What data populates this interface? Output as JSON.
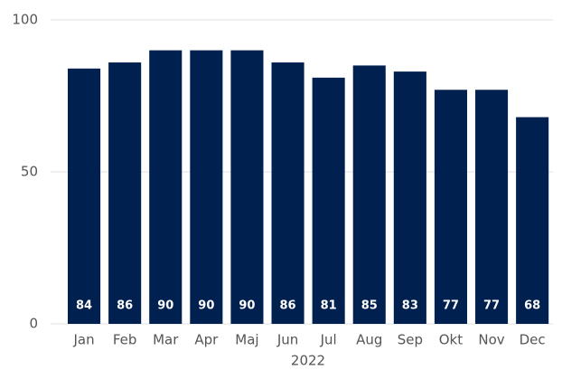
{
  "chart_data": {
    "type": "bar",
    "categories": [
      "Jan",
      "Feb",
      "Mar",
      "Apr",
      "Maj",
      "Jun",
      "Jul",
      "Aug",
      "Sep",
      "Okt",
      "Nov",
      "Dec"
    ],
    "values": [
      84,
      86,
      90,
      90,
      90,
      86,
      81,
      85,
      83,
      77,
      77,
      68
    ],
    "color": "#002050",
    "x_label": "2022",
    "ylim": [
      0,
      100
    ],
    "yticks": [
      0,
      50,
      100
    ],
    "grid": true
  }
}
